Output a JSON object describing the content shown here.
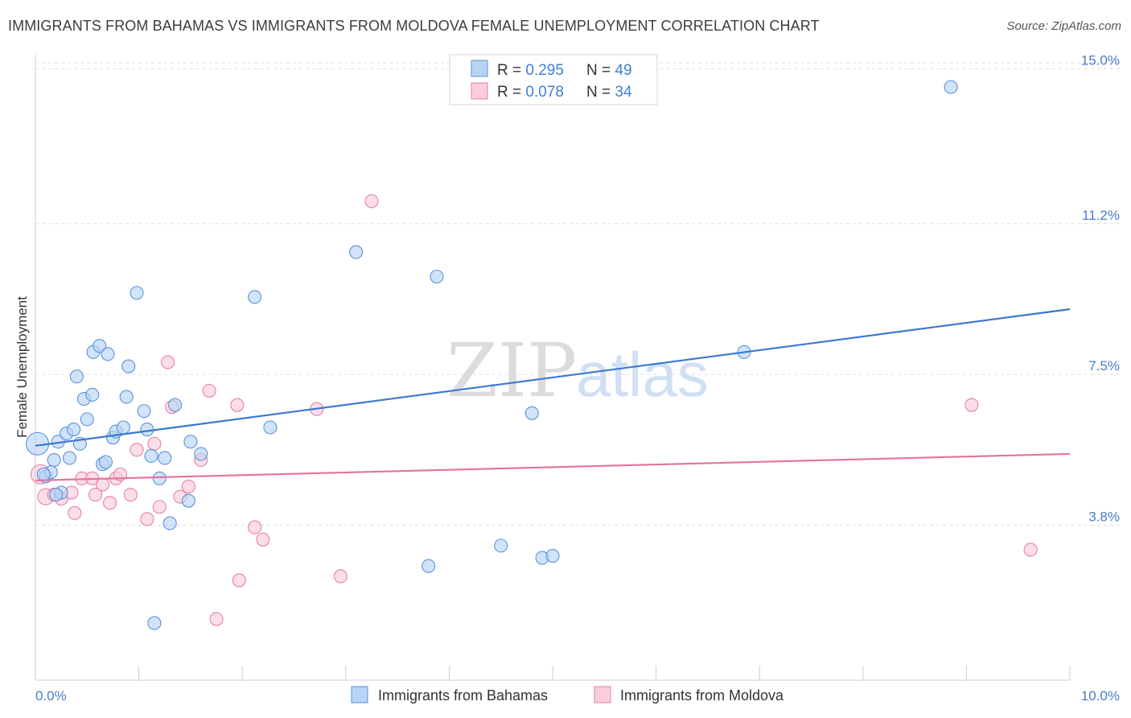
{
  "title": "IMMIGRANTS FROM BAHAMAS VS IMMIGRANTS FROM MOLDOVA FEMALE UNEMPLOYMENT CORRELATION CHART",
  "source": "Source: ZipAtlas.com",
  "watermark": {
    "zip": "ZIP",
    "atlas": "atlas"
  },
  "colors": {
    "bahamas_fill": "#b8d4f4",
    "bahamas_stroke": "#5b93d9",
    "bahamas_line": "#3a78d0",
    "moldova_fill": "#fbcddd",
    "moldova_stroke": "#e87fa3",
    "moldova_line": "#e4739c",
    "grid": "#dddddd",
    "tick_text": "#4a7cc9"
  },
  "legend": {
    "rows": [
      {
        "r_label": "R = ",
        "r_value": "0.295",
        "n_label": "N = ",
        "n_value": "49"
      },
      {
        "r_label": "R = ",
        "r_value": "0.078",
        "n_label": "N = ",
        "n_value": "34"
      }
    ]
  },
  "chart_data": {
    "type": "scatter",
    "title": "IMMIGRANTS FROM BAHAMAS VS IMMIGRANTS FROM MOLDOVA FEMALE UNEMPLOYMENT CORRELATION CHART",
    "xlabel": "",
    "ylabel": "Female Unemployment",
    "xlim": [
      0,
      10
    ],
    "ylim": [
      0,
      15.5
    ],
    "x_tick_labels": [
      "0.0%",
      "10.0%"
    ],
    "y_ticks": [
      {
        "value": 3.8,
        "label": "3.8%"
      },
      {
        "value": 7.5,
        "label": "7.5%"
      },
      {
        "value": 11.2,
        "label": "11.2%"
      },
      {
        "value": 15.0,
        "label": "15.0%"
      }
    ],
    "series": [
      {
        "name": "Immigrants from Bahamas",
        "r": 0.295,
        "n": 49,
        "trend": {
          "x": [
            0,
            10
          ],
          "y": [
            5.75,
            9.1
          ]
        },
        "points": [
          [
            0.02,
            5.8,
            14
          ],
          [
            0.1,
            5.0,
            8
          ],
          [
            0.15,
            5.1,
            8
          ],
          [
            0.18,
            5.4,
            8
          ],
          [
            0.22,
            5.85,
            8
          ],
          [
            0.25,
            4.6,
            8
          ],
          [
            0.3,
            6.05,
            8
          ],
          [
            0.33,
            5.45,
            8
          ],
          [
            0.37,
            6.15,
            8
          ],
          [
            0.4,
            7.45,
            8
          ],
          [
            0.43,
            5.8,
            8
          ],
          [
            0.47,
            6.9,
            8
          ],
          [
            0.5,
            6.4,
            8
          ],
          [
            0.55,
            7.0,
            8
          ],
          [
            0.56,
            8.05,
            8
          ],
          [
            0.62,
            8.2,
            8
          ],
          [
            0.65,
            5.3,
            8
          ],
          [
            0.68,
            5.35,
            8
          ],
          [
            0.7,
            8.0,
            8
          ],
          [
            0.75,
            5.95,
            8
          ],
          [
            0.78,
            6.1,
            8
          ],
          [
            0.85,
            6.2,
            8
          ],
          [
            0.88,
            6.95,
            8
          ],
          [
            0.9,
            7.7,
            8
          ],
          [
            0.98,
            9.5,
            8
          ],
          [
            1.05,
            6.6,
            8
          ],
          [
            1.08,
            6.15,
            8
          ],
          [
            1.12,
            5.5,
            8
          ],
          [
            1.15,
            1.4,
            8
          ],
          [
            1.2,
            4.95,
            8
          ],
          [
            1.25,
            5.45,
            8
          ],
          [
            1.3,
            3.85,
            8
          ],
          [
            1.35,
            6.75,
            8
          ],
          [
            1.48,
            4.4,
            8
          ],
          [
            1.5,
            5.85,
            8
          ],
          [
            1.6,
            5.55,
            8
          ],
          [
            2.12,
            9.4,
            8
          ],
          [
            2.27,
            6.2,
            8
          ],
          [
            3.1,
            10.5,
            8
          ],
          [
            3.8,
            2.8,
            8
          ],
          [
            3.88,
            9.9,
            8
          ],
          [
            4.5,
            3.3,
            8
          ],
          [
            4.8,
            6.55,
            8
          ],
          [
            4.9,
            3.0,
            8
          ],
          [
            5.0,
            3.05,
            8
          ],
          [
            6.85,
            8.05,
            8
          ],
          [
            8.85,
            14.55,
            8
          ],
          [
            0.08,
            5.05,
            8
          ],
          [
            0.2,
            4.55,
            8
          ]
        ]
      },
      {
        "name": "Immigrants from Moldova",
        "r": 0.078,
        "n": 34,
        "trend": {
          "x": [
            0,
            10
          ],
          "y": [
            4.9,
            5.55
          ]
        },
        "points": [
          [
            0.05,
            5.05,
            12
          ],
          [
            0.1,
            4.5,
            10
          ],
          [
            0.18,
            4.55,
            8
          ],
          [
            0.25,
            4.45,
            8
          ],
          [
            0.35,
            4.6,
            8
          ],
          [
            0.38,
            4.1,
            8
          ],
          [
            0.45,
            4.95,
            8
          ],
          [
            0.55,
            4.95,
            8
          ],
          [
            0.58,
            4.55,
            8
          ],
          [
            0.65,
            4.8,
            8
          ],
          [
            0.72,
            4.35,
            8
          ],
          [
            0.78,
            4.95,
            8
          ],
          [
            0.82,
            5.05,
            8
          ],
          [
            0.92,
            4.55,
            8
          ],
          [
            0.98,
            5.65,
            8
          ],
          [
            1.08,
            3.95,
            8
          ],
          [
            1.15,
            5.8,
            8
          ],
          [
            1.2,
            4.25,
            8
          ],
          [
            1.28,
            7.8,
            8
          ],
          [
            1.32,
            6.7,
            8
          ],
          [
            1.4,
            4.5,
            8
          ],
          [
            1.48,
            4.75,
            8
          ],
          [
            1.6,
            5.4,
            8
          ],
          [
            1.68,
            7.1,
            8
          ],
          [
            1.75,
            1.5,
            8
          ],
          [
            1.95,
            6.75,
            8
          ],
          [
            1.97,
            2.45,
            8
          ],
          [
            2.12,
            3.75,
            8
          ],
          [
            2.2,
            3.45,
            8
          ],
          [
            2.72,
            6.65,
            8
          ],
          [
            2.95,
            2.55,
            8
          ],
          [
            3.25,
            11.75,
            8
          ],
          [
            9.05,
            6.75,
            8
          ],
          [
            9.62,
            3.2,
            8
          ]
        ]
      }
    ],
    "legend_position": "top-center"
  }
}
